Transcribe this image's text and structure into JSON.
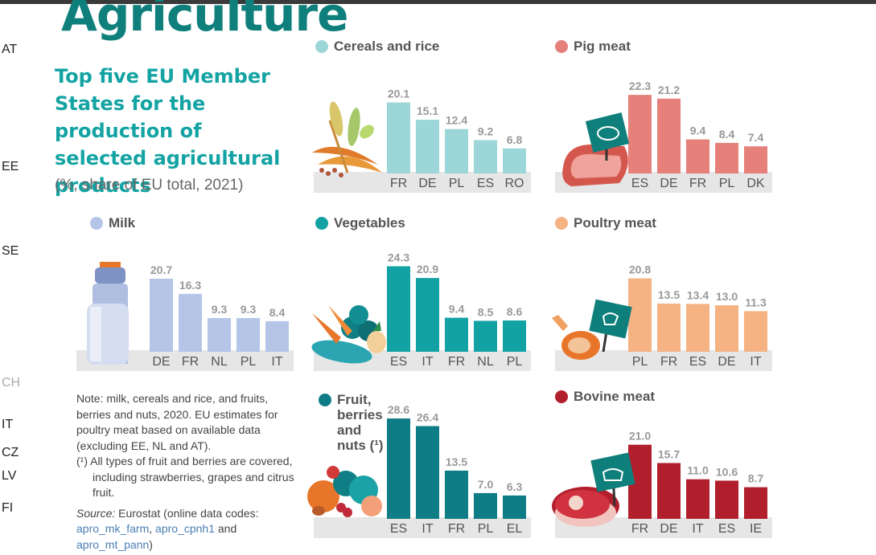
{
  "title": "Agriculture",
  "subtitle": "Top five EU Member States for the production of selected agricultural products",
  "unit_note": "(%, share of EU total, 2021)",
  "side_labels": [
    "AT",
    "EE",
    "SE",
    "CH",
    "IT",
    "CZ",
    "LV",
    "FI"
  ],
  "note": {
    "main": "Note: milk, cereals and rice, and fruits, berries and nuts, 2020. EU estimates for poultry meat based on available data (excluding EE, NL and AT).",
    "footnote": "(¹) All types of fruit and berries are covered, including strawberries, grapes and citrus fruit.",
    "source_label": "Source:",
    "source_text": " Eurostat (online data codes: ",
    "code1": "apro_mk_farm",
    "sep1": ", ",
    "code2": "apro_cpnh1",
    "sep2": " and ",
    "code3": "apro_mt_pann",
    "end": ")"
  },
  "chart_data": [
    {
      "type": "bar",
      "name": "Cereals and rice",
      "color": "#9dd6d8",
      "categories": [
        "FR",
        "DE",
        "PL",
        "ES",
        "RO"
      ],
      "values": [
        20.1,
        15.1,
        12.4,
        9.2,
        6.8
      ],
      "labels": [
        "20.1",
        "15.1",
        "12.4",
        "9.2",
        "6.8"
      ],
      "icon": "cereals-icon"
    },
    {
      "type": "bar",
      "name": "Pig meat",
      "color": "#e5807a",
      "categories": [
        "ES",
        "DE",
        "FR",
        "PL",
        "DK"
      ],
      "values": [
        22.3,
        21.2,
        9.4,
        8.4,
        7.4
      ],
      "labels": [
        "22.3",
        "21.2",
        "9.4",
        "8.4",
        "7.4"
      ],
      "icon": "pig-meat-icon"
    },
    {
      "type": "bar",
      "name": "Milk",
      "color": "#b4c5e8",
      "categories": [
        "DE",
        "FR",
        "NL",
        "PL",
        "IT"
      ],
      "values": [
        20.7,
        16.3,
        9.3,
        9.3,
        8.4
      ],
      "labels": [
        "20.7",
        "16.3",
        "9.3",
        "9.3",
        "8.4"
      ],
      "icon": "milk-can-icon"
    },
    {
      "type": "bar",
      "name": "Vegetables",
      "color": "#13a2a4",
      "categories": [
        "ES",
        "IT",
        "FR",
        "NL",
        "PL"
      ],
      "values": [
        24.3,
        20.9,
        9.4,
        8.5,
        8.6
      ],
      "labels": [
        "24.3",
        "20.9",
        "9.4",
        "8.5",
        "8.6"
      ],
      "icon": "vegetables-icon"
    },
    {
      "type": "bar",
      "name": "Poultry meat",
      "color": "#f5b283",
      "categories": [
        "PL",
        "FR",
        "ES",
        "DE",
        "IT"
      ],
      "values": [
        20.8,
        13.5,
        13.4,
        13.0,
        11.3
      ],
      "labels": [
        "20.8",
        "13.5",
        "13.4",
        "13.0",
        "11.3"
      ],
      "icon": "poultry-icon"
    },
    {
      "type": "bar",
      "name": "Fruit, berries and nuts (¹)",
      "color": "#0f7d85",
      "categories": [
        "ES",
        "IT",
        "FR",
        "PL",
        "EL"
      ],
      "values": [
        28.6,
        26.4,
        13.5,
        7.0,
        6.3
      ],
      "labels": [
        "28.6",
        "26.4",
        "13.5",
        "7.0",
        "6.3"
      ],
      "icon": "fruit-icon"
    },
    {
      "type": "bar",
      "name": "Bovine meat",
      "color": "#b01f2b",
      "categories": [
        "FR",
        "DE",
        "IT",
        "ES",
        "IE"
      ],
      "values": [
        21.0,
        15.7,
        11.0,
        10.6,
        8.7
      ],
      "labels": [
        "21.0",
        "15.7",
        "11.0",
        "10.6",
        "8.7"
      ],
      "icon": "bovine-meat-icon"
    }
  ]
}
